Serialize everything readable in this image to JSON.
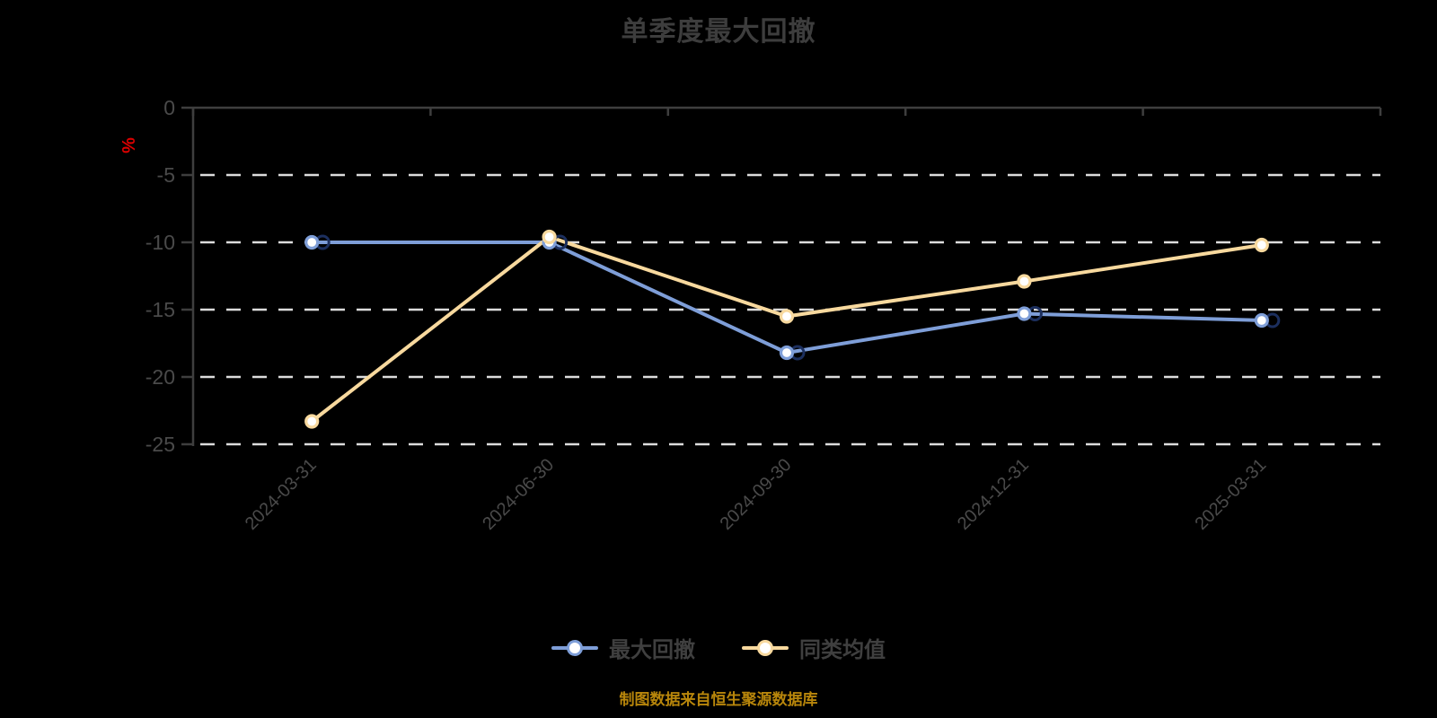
{
  "title": "单季度最大回撤",
  "source_note": "制图数据来自恒生聚源数据库",
  "colors": {
    "background": "#000000",
    "title_text": "#3d3d3d",
    "axis_line": "#3e3e3e",
    "axis_label": "#4a4a4a",
    "gridline": "#dcdcdc",
    "percent_label": "#dd0000",
    "source_text": "#b8860b",
    "legend_text": "#3f3f3f",
    "series_blue": "#7e9ed8",
    "series_blue_dark_ring": "#1c2f5e",
    "series_yellow": "#f8d99e",
    "marker_fill": "#ffffff"
  },
  "y_axis_unit": "%",
  "chart_data": {
    "type": "line",
    "title": "单季度最大回撤",
    "ylabel": "%",
    "x": [
      "2024-03-31",
      "2024-06-30",
      "2024-09-30",
      "2024-12-31",
      "2025-03-31"
    ],
    "series": [
      {
        "name": "最大回撤",
        "color_key": "series_blue",
        "values": [
          -10.0,
          -10.0,
          -18.2,
          -15.3,
          -15.8
        ]
      },
      {
        "name": "同类均值",
        "color_key": "series_yellow",
        "values": [
          -23.3,
          -9.6,
          -15.5,
          -12.9,
          -10.2
        ]
      }
    ],
    "y_ticks": [
      0,
      -5,
      -10,
      -15,
      -20,
      -25
    ],
    "ylim": [
      -25,
      0
    ],
    "grid": "horizontal-dashed",
    "x_axis_position": "top",
    "x_label_rotation_deg": 45,
    "legend_position": "bottom"
  },
  "legend": {
    "items": [
      {
        "label": "最大回撤",
        "color_key": "series_blue"
      },
      {
        "label": "同类均值",
        "color_key": "series_yellow"
      }
    ]
  }
}
